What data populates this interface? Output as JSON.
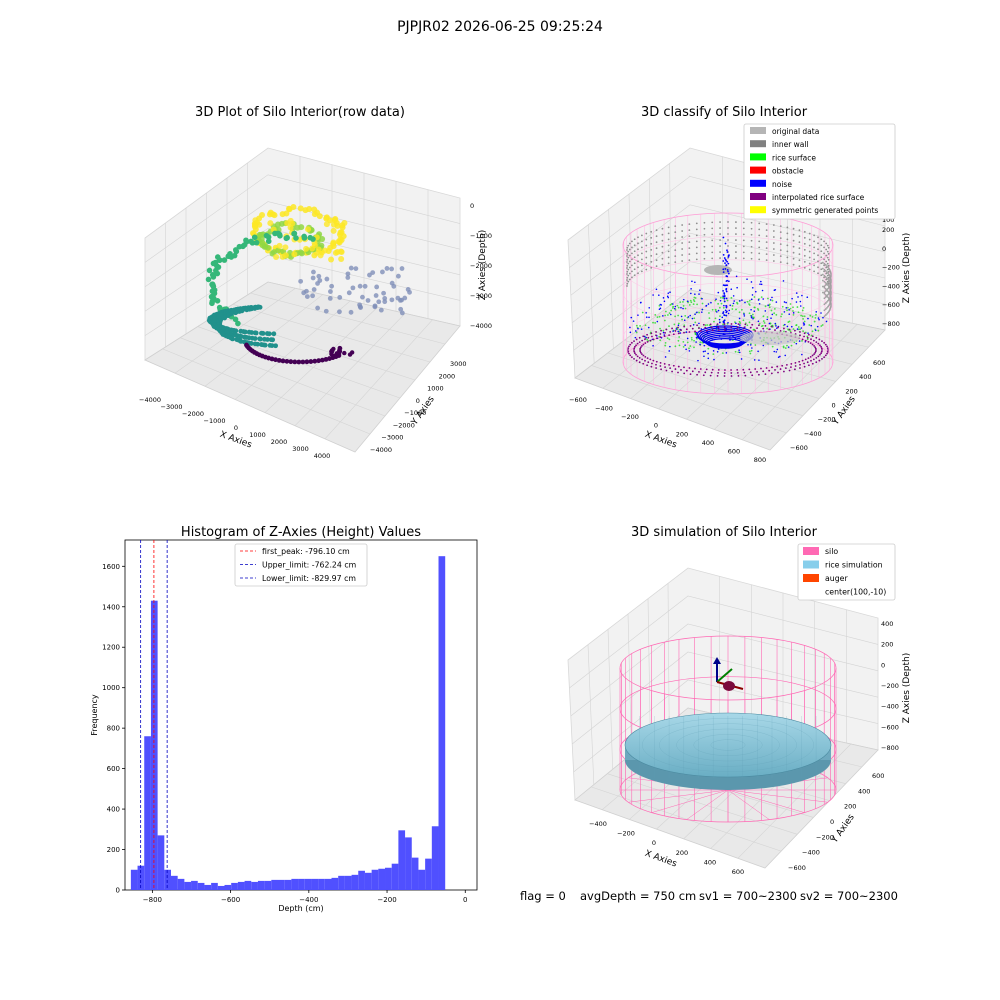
{
  "suptitle": "PJPJR02 2026-06-25 09:25:24",
  "footer": {
    "flag": "flag = 0",
    "avg": "avgDepth = 750 cm",
    "sv1": "sv1 = 700~2300",
    "sv2": "sv2 = 700~2300"
  },
  "chart_data": [
    {
      "type": "scatter",
      "title": "3D Plot of Silo Interior(row data)",
      "xlabel": "X Axies",
      "ylabel": "Y Axies",
      "zlabel": "Z Axies (Depth)",
      "xticks": [
        "−4000",
        "−3000",
        "−2000",
        "−1000",
        "0",
        "1000",
        "2000",
        "3000",
        "4000"
      ],
      "yticks": [
        "−4000",
        "−3000",
        "−2000",
        "−1000",
        "0",
        "1000",
        "2000",
        "3000"
      ],
      "zticks": [
        "0",
        "−1000",
        "−2000",
        "−3000",
        "−4000"
      ],
      "colormap": [
        "#440154",
        "#31688e",
        "#21918c",
        "#35b779",
        "#90d743",
        "#fde725"
      ]
    },
    {
      "type": "scatter",
      "title": "3D classify of Silo Interior",
      "xlabel": "X Axies",
      "ylabel": "Y Axies",
      "zlabel": "Z Axies (Depth)",
      "xticks": [
        "−600",
        "−400",
        "−200",
        "0",
        "200",
        "400",
        "600",
        "800"
      ],
      "yticks": [
        "−600",
        "−400",
        "−200",
        "0",
        "200",
        "400",
        "600"
      ],
      "zticks": [
        "200",
        "0",
        "−200",
        "−400",
        "−600",
        "−800"
      ],
      "zticks_extra": [
        "200",
        "100"
      ],
      "legend_position": "top-right",
      "legend": [
        {
          "label": "original data",
          "color": "#b5b5b5"
        },
        {
          "label": "inner wall",
          "color": "#808080"
        },
        {
          "label": "rice surface",
          "color": "#00ff00"
        },
        {
          "label": "obstacle",
          "color": "#ff0000"
        },
        {
          "label": "noise",
          "color": "#0000ff"
        },
        {
          "label": "interpolated rice surface",
          "color": "#800080"
        },
        {
          "label": "symmetric generated points",
          "color": "#ffff00"
        }
      ]
    },
    {
      "type": "bar",
      "title": "Histogram of Z-Axies (Height) Values",
      "xlabel": "Depth (cm)",
      "ylabel": "Frequency",
      "xlim": [
        -870,
        30
      ],
      "ylim": [
        0,
        1730
      ],
      "xticks": [
        -800,
        -600,
        -400,
        -200,
        0
      ],
      "xtick_labels": [
        "−800",
        "−600",
        "−400",
        "−200",
        "0"
      ],
      "yticks": [
        0,
        200,
        400,
        600,
        800,
        1000,
        1200,
        1400,
        1600
      ],
      "bar_color": "#4d4dff",
      "bin_start": -855,
      "bin_width": 17.1,
      "values": [
        100,
        120,
        760,
        1430,
        270,
        100,
        70,
        55,
        40,
        45,
        35,
        25,
        35,
        20,
        25,
        35,
        40,
        45,
        40,
        45,
        45,
        50,
        50,
        50,
        55,
        55,
        55,
        55,
        55,
        55,
        60,
        70,
        70,
        75,
        95,
        85,
        100,
        105,
        110,
        130,
        295,
        260,
        160,
        100,
        155,
        315,
        1650
      ],
      "vlines": [
        {
          "x": -796.1,
          "color": "#ff0000",
          "label": "first_peak: -796.10 cm"
        },
        {
          "x": -762.24,
          "color": "#0000c0",
          "label": "Upper_limit: -762.24 cm"
        },
        {
          "x": -829.97,
          "color": "#0000c0",
          "label": "Lower_limit: -829.97 cm"
        }
      ],
      "legend_position": "top-center"
    },
    {
      "type": "scatter",
      "title": "3D simulation of Silo Interior",
      "xlabel": "X Axies",
      "ylabel": "Y Axies",
      "zlabel": "Z Axies (Depth)",
      "xticks": [
        "−400",
        "−200",
        "0",
        "200",
        "400",
        "600"
      ],
      "yticks": [
        "−600",
        "−400",
        "−200",
        "0",
        "200",
        "400",
        "600"
      ],
      "zticks": [
        "400",
        "200",
        "0",
        "−200",
        "−400",
        "−600",
        "−800"
      ],
      "legend_position": "top-right",
      "legend": [
        {
          "label": "silo",
          "color": "#ff69b4"
        },
        {
          "label": "rice simulation",
          "color": "#87ceeb"
        },
        {
          "label": "auger",
          "color": "#ff4500"
        },
        {
          "label": "center(100,-10)",
          "color": ""
        }
      ]
    }
  ]
}
